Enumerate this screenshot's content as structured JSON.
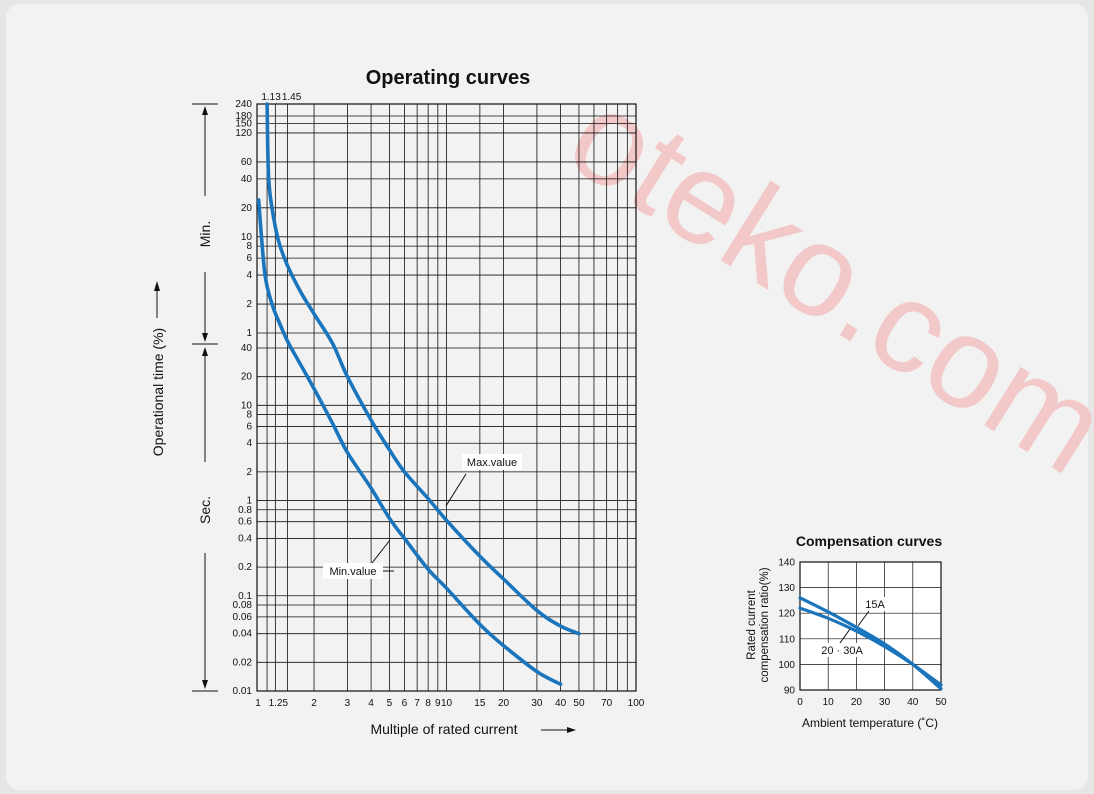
{
  "watermark": "oteko.com 料行",
  "chart_data": [
    {
      "type": "line",
      "title": "Operating curves",
      "xlabel": "Multiple of rated current",
      "ylabel": "Operational time (%)",
      "xscale": "log",
      "xlim": [
        1,
        100
      ],
      "x_ticks": [
        {
          "v": 1,
          "label": "1"
        },
        {
          "v": 1.25,
          "label": "1.25"
        },
        {
          "v": 2,
          "label": "2"
        },
        {
          "v": 3,
          "label": "3"
        },
        {
          "v": 4,
          "label": "4"
        },
        {
          "v": 5,
          "label": "5"
        },
        {
          "v": 6,
          "label": "6"
        },
        {
          "v": 7,
          "label": "7"
        },
        {
          "v": 8,
          "label": "8"
        },
        {
          "v": 9,
          "label": "9"
        },
        {
          "v": 10,
          "label": "10"
        },
        {
          "v": 15,
          "label": "15"
        },
        {
          "v": 20,
          "label": "20"
        },
        {
          "v": 30,
          "label": "30"
        },
        {
          "v": 40,
          "label": "40"
        },
        {
          "v": 50,
          "label": "50"
        },
        {
          "v": 70,
          "label": "70"
        },
        {
          "v": 100,
          "label": "100"
        }
      ],
      "x_grid": [
        1,
        1.13,
        1.25,
        1.45,
        2,
        3,
        4,
        5,
        6,
        7,
        8,
        9,
        10,
        15,
        20,
        30,
        40,
        50,
        60,
        70,
        80,
        90,
        100
      ],
      "top_labels": [
        {
          "v": 1.13,
          "label": "1.13"
        },
        {
          "v": 1.45,
          "label": "1.45"
        }
      ],
      "y_unit_sections": [
        {
          "unit": "Min.",
          "from_sec": 60,
          "to_sec": 14400
        },
        {
          "unit": "Sec.",
          "from_sec": 0.01,
          "to_sec": 60
        }
      ],
      "y_ticks": [
        {
          "sec": 14400,
          "label": "240"
        },
        {
          "sec": 10800,
          "label": "180"
        },
        {
          "sec": 9000,
          "label": "150"
        },
        {
          "sec": 7200,
          "label": "120"
        },
        {
          "sec": 3600,
          "label": "60"
        },
        {
          "sec": 2400,
          "label": "40"
        },
        {
          "sec": 1200,
          "label": "20"
        },
        {
          "sec": 600,
          "label": "10"
        },
        {
          "sec": 480,
          "label": "8"
        },
        {
          "sec": 360,
          "label": "6"
        },
        {
          "sec": 240,
          "label": "4"
        },
        {
          "sec": 120,
          "label": "2"
        },
        {
          "sec": 60,
          "label": "1"
        },
        {
          "sec": 40,
          "label": "40"
        },
        {
          "sec": 20,
          "label": "20"
        },
        {
          "sec": 10,
          "label": "10"
        },
        {
          "sec": 8,
          "label": "8"
        },
        {
          "sec": 6,
          "label": "6"
        },
        {
          "sec": 4,
          "label": "4"
        },
        {
          "sec": 2,
          "label": "2"
        },
        {
          "sec": 1,
          "label": "1"
        },
        {
          "sec": 0.8,
          "label": "0.8"
        },
        {
          "sec": 0.6,
          "label": "0.6"
        },
        {
          "sec": 0.4,
          "label": "0.4"
        },
        {
          "sec": 0.2,
          "label": "0.2"
        },
        {
          "sec": 0.1,
          "label": "0.1"
        },
        {
          "sec": 0.08,
          "label": "0.08"
        },
        {
          "sec": 0.06,
          "label": "0.06"
        },
        {
          "sec": 0.04,
          "label": "0.04"
        },
        {
          "sec": 0.02,
          "label": "0.02"
        },
        {
          "sec": 0.01,
          "label": "0.01"
        }
      ],
      "series": [
        {
          "name": "Max.value",
          "color": "#1a75bc",
          "points": [
            [
              1.13,
              14400
            ],
            [
              1.15,
              2600
            ],
            [
              1.2,
              1200
            ],
            [
              1.3,
              540
            ],
            [
              1.45,
              300
            ],
            [
              1.7,
              160
            ],
            [
              2,
              95
            ],
            [
              2.5,
              45
            ],
            [
              3,
              20
            ],
            [
              4,
              7
            ],
            [
              5,
              3.4
            ],
            [
              6,
              2
            ],
            [
              8,
              1.05
            ],
            [
              10,
              0.62
            ],
            [
              15,
              0.26
            ],
            [
              20,
              0.15
            ],
            [
              30,
              0.07
            ],
            [
              40,
              0.048
            ],
            [
              50,
              0.04
            ]
          ]
        },
        {
          "name": "Min.value",
          "color": "#1a75bc",
          "points": [
            [
              1.02,
              1450
            ],
            [
              1.1,
              250
            ],
            [
              1.2,
              120
            ],
            [
              1.3,
              80
            ],
            [
              1.45,
              47
            ],
            [
              1.6,
              33
            ],
            [
              2,
              15
            ],
            [
              2.5,
              6.5
            ],
            [
              3,
              3.2
            ],
            [
              4,
              1.35
            ],
            [
              5,
              0.65
            ],
            [
              6,
              0.4
            ],
            [
              8,
              0.19
            ],
            [
              10,
              0.12
            ],
            [
              15,
              0.05
            ],
            [
              20,
              0.03
            ],
            [
              30,
              0.016
            ],
            [
              40,
              0.0118
            ]
          ]
        }
      ]
    },
    {
      "type": "line",
      "title": "Compensation curves",
      "xlabel": "Ambient temperature (˚C)",
      "ylabel": "Rated current compensation ratio(%)",
      "ylabel_lines": [
        "Rated current",
        "compensation ratio(%)"
      ],
      "xlim": [
        0,
        50
      ],
      "ylim": [
        90,
        140
      ],
      "x_ticks": [
        0,
        10,
        20,
        30,
        40,
        50
      ],
      "y_ticks": [
        90,
        100,
        110,
        120,
        130,
        140
      ],
      "series": [
        {
          "name": "15A",
          "color": "#1a75bc",
          "points": [
            [
              0,
              126
            ],
            [
              10,
              120.5
            ],
            [
              20,
              114.5
            ],
            [
              30,
              108
            ],
            [
              40,
              100
            ],
            [
              50,
              90.5
            ]
          ]
        },
        {
          "name": "20 · 30A",
          "color": "#1a75bc",
          "points": [
            [
              0,
              122
            ],
            [
              10,
              118
            ],
            [
              20,
              113
            ],
            [
              30,
              107
            ],
            [
              40,
              100
            ],
            [
              50,
              92
            ]
          ]
        }
      ]
    }
  ]
}
